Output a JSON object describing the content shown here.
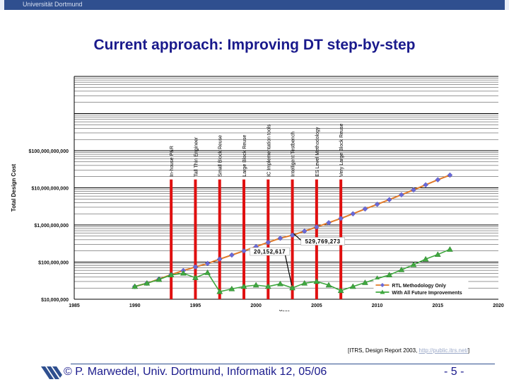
{
  "header": {
    "university": "Universität Dortmund"
  },
  "slide_title": "Current approach: Improving DT step-by-step",
  "source": {
    "prefix": "[ITRS, Design Report 2003,",
    "url": "http://public.itrs.net/",
    "suffix": "]"
  },
  "footer": {
    "text": "© P. Marwedel, Univ. Dortmund, Informatik 12, 05/06",
    "page": "- 5 -"
  },
  "colors": {
    "accent": "#1a1a8c",
    "rtl_line": "#e07a2a",
    "rtl_marker": "#6a6ad8",
    "improv": "#3fa83f",
    "bar": "#e01010"
  },
  "chart_data": {
    "type": "line",
    "ylabel": "Total Design Cost",
    "xlabel": "Year",
    "y_scale": "log",
    "xlim": [
      1985,
      2020
    ],
    "ylim": [
      10000000,
      10000000000000
    ],
    "x_ticks": [
      1985,
      1990,
      1995,
      2000,
      2005,
      2010,
      2015,
      2020
    ],
    "x_tick_labels": [
      "1985",
      "1990",
      "1995",
      "2000",
      "2005",
      "2010",
      "2015",
      "2020"
    ],
    "y_ticks": [
      10000000,
      100000000,
      1000000000,
      10000000000,
      100000000000
    ],
    "y_tick_labels": [
      "$10,000,000",
      "$100,000,000",
      "$1,000,000,000",
      "$10,000,000,000",
      "$100,000,000,000"
    ],
    "series": [
      {
        "name": "RTL Methodology Only",
        "x": [
          1990,
          1991,
          1992,
          1993,
          1994,
          1995,
          1996,
          1997,
          1998,
          1999,
          2000,
          2001,
          2002,
          2003,
          2004,
          2005,
          2006,
          2007,
          2008,
          2009,
          2010,
          2011,
          2012,
          2013,
          2014,
          2015,
          2016
        ],
        "y": [
          22000000,
          27000000,
          35000000,
          46000000,
          59000000,
          74000000,
          92000000,
          120000000,
          155000000,
          200000000,
          260000000,
          340000000,
          440000000,
          529769273,
          680000000,
          880000000,
          1150000000,
          1500000000,
          2000000000,
          2700000000,
          3600000000,
          4800000000,
          6500000000,
          8800000000,
          12000000000,
          16500000000,
          22000000000
        ]
      },
      {
        "name": "With All Future Improvements",
        "x": [
          1990,
          1991,
          1992,
          1993,
          1994,
          1995,
          1996,
          1997,
          1998,
          1999,
          2000,
          2001,
          2002,
          2003,
          2004,
          2005,
          2006,
          2007,
          2008,
          2009,
          2010,
          2011,
          2012,
          2013,
          2014,
          2015,
          2016
        ],
        "y": [
          22000000,
          27000000,
          34000000,
          45000000,
          50000000,
          38000000,
          52000000,
          16000000,
          19000000,
          22000000,
          24000000,
          22000000,
          26000000,
          20152617,
          27000000,
          30000000,
          24000000,
          17000000,
          22000000,
          28000000,
          36000000,
          45000000,
          62000000,
          85000000,
          120000000,
          160000000,
          220000000
        ]
      }
    ],
    "improvements": [
      {
        "label": "In-house P&R",
        "year": 1993
      },
      {
        "label": "Tall Thin Engineer",
        "year": 1995
      },
      {
        "label": "Small Block Reuse",
        "year": 1997
      },
      {
        "label": "Large Block Reuse",
        "year": 1999
      },
      {
        "label": "IC Implementation tools",
        "year": 2001
      },
      {
        "label": "Intelligent Testbench",
        "year": 2003
      },
      {
        "label": "ES Level Methodology",
        "year": 2005
      },
      {
        "label": "Very Large Block Reuse",
        "year": 2007
      }
    ],
    "annotations": [
      {
        "text": "529,769,273",
        "x": 2003,
        "y": 529769273
      },
      {
        "text": "20,152,617",
        "x": 2003,
        "y": 20152617
      }
    ],
    "legend_position": "bottom-right",
    "grid": true
  }
}
